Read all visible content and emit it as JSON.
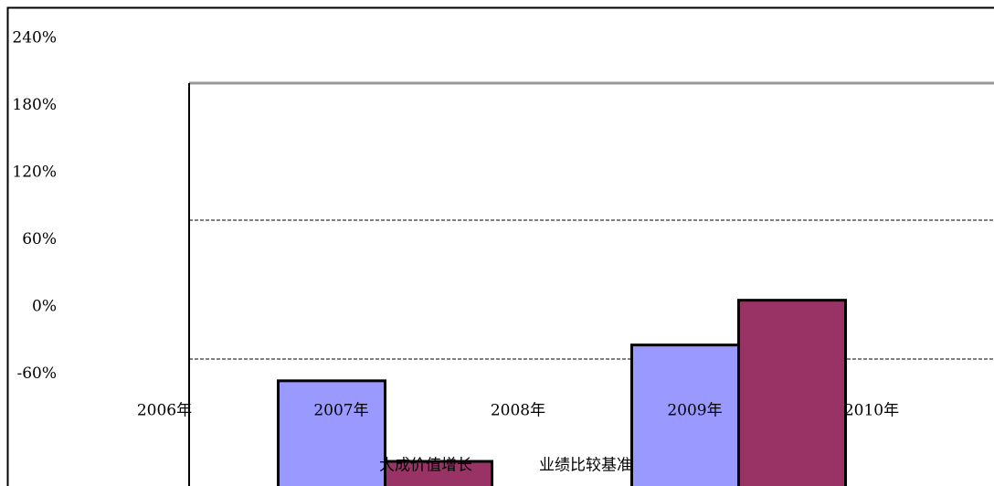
{
  "chart_data": {
    "type": "bar",
    "categories": [
      "2006年",
      "2007年",
      "2008年",
      "2009年",
      "2010年"
    ],
    "series": [
      {
        "name": "大成价值增长",
        "color": "#9999ff",
        "values": [
          null,
          -66,
          null,
          -34,
          null
        ]
      },
      {
        "name": "业绩比较基准",
        "color": "#993366",
        "values": [
          null,
          -138,
          null,
          6,
          null
        ]
      }
    ],
    "ylim": [
      -160,
      240
    ],
    "yticks": [
      {
        "value": 240,
        "label": "240%"
      },
      {
        "value": 180,
        "label": "180%"
      },
      {
        "value": 120,
        "label": "120%"
      },
      {
        "value": 60,
        "label": "60%"
      },
      {
        "value": 0,
        "label": "0%"
      },
      {
        "value": -60,
        "label": "-60%"
      }
    ]
  }
}
